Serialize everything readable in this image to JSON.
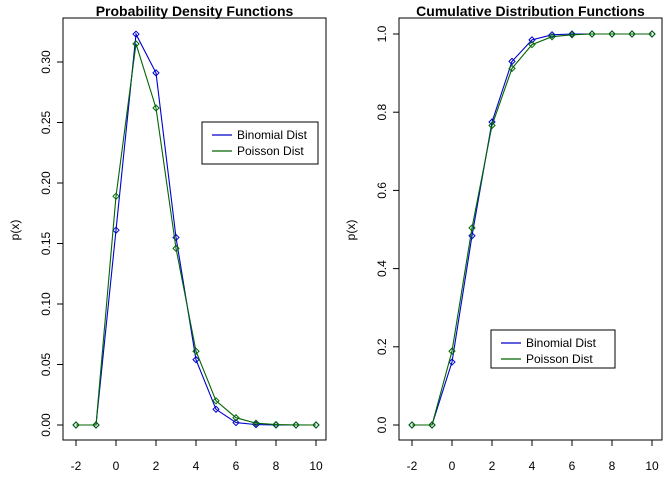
{
  "colors": {
    "binomial": "#0000CC",
    "poisson": "#006600",
    "axis": "#000000",
    "background": "#FFFFFF"
  },
  "chart_data": [
    {
      "type": "line",
      "title": "Probability Density Functions",
      "xlabel": "",
      "ylabel": "p(x)",
      "xlim": [
        -2,
        10
      ],
      "ylim": [
        0,
        0.32
      ],
      "grid": false,
      "markers": "open-diamond",
      "x_ticks": [
        "-2",
        "0",
        "2",
        "4",
        "6",
        "8",
        "10"
      ],
      "y_ticks": [
        "0.00",
        "0.05",
        "0.10",
        "0.15",
        "0.20",
        "0.25",
        "0.30"
      ],
      "legend": {
        "position": "right",
        "entries": [
          "Binomial Dist",
          "Poisson Dist"
        ]
      },
      "x": [
        -2,
        -1,
        0,
        1,
        2,
        3,
        4,
        5,
        6,
        7,
        8,
        9,
        10
      ],
      "series": [
        {
          "name": "Binomial Dist",
          "color": "binomial",
          "values": [
            0,
            0,
            0.161,
            0.323,
            0.291,
            0.155,
            0.054,
            0.013,
            0.002,
            0.0003,
            0,
            0,
            0
          ]
        },
        {
          "name": "Poisson Dist",
          "color": "poisson",
          "values": [
            0,
            0,
            0.189,
            0.315,
            0.262,
            0.146,
            0.061,
            0.02,
            0.006,
            0.0015,
            0.0003,
            6e-05,
            0
          ]
        }
      ]
    },
    {
      "type": "line",
      "title": "Cumulative Distribution Functions",
      "xlabel": "",
      "ylabel": "p(x)",
      "xlim": [
        -2,
        10
      ],
      "ylim": [
        0,
        1
      ],
      "grid": false,
      "markers": "open-diamond",
      "x_ticks": [
        "-2",
        "0",
        "2",
        "4",
        "6",
        "8",
        "10"
      ],
      "y_ticks": [
        "0.0",
        "0.2",
        "0.4",
        "0.6",
        "0.8",
        "1.0"
      ],
      "legend": {
        "position": "bottom-right",
        "entries": [
          "Binomial Dist",
          "Poisson Dist"
        ]
      },
      "x": [
        -2,
        -1,
        0,
        1,
        2,
        3,
        4,
        5,
        6,
        7,
        8,
        9,
        10
      ],
      "series": [
        {
          "name": "Binomial Dist",
          "color": "binomial",
          "values": [
            0,
            0,
            0.161,
            0.484,
            0.775,
            0.93,
            0.985,
            0.998,
            1.0,
            1.0,
            1.0,
            1.0,
            1.0
          ]
        },
        {
          "name": "Poisson Dist",
          "color": "poisson",
          "values": [
            0,
            0,
            0.189,
            0.504,
            0.766,
            0.912,
            0.973,
            0.993,
            0.998,
            1.0,
            1.0,
            1.0,
            1.0
          ]
        }
      ]
    }
  ]
}
